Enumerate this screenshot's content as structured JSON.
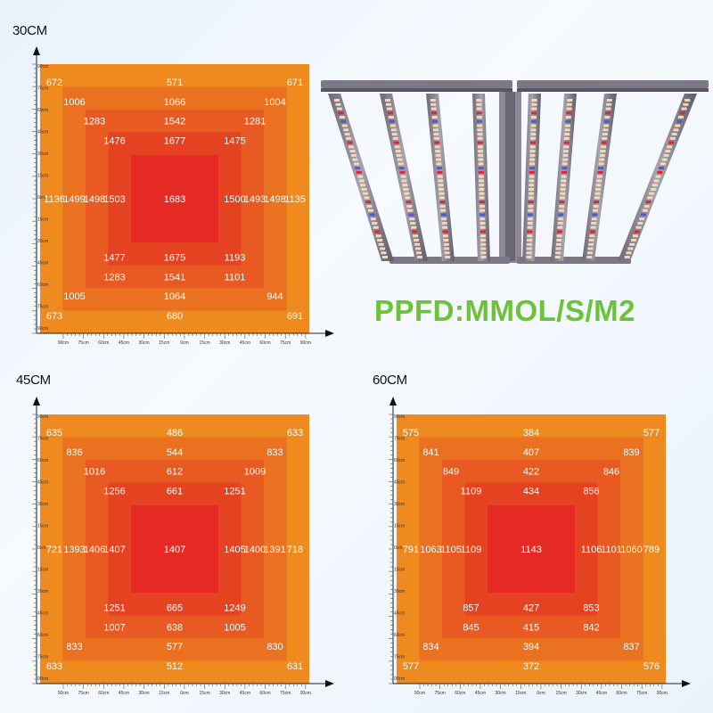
{
  "colors": {
    "ring0": "#ef8a1e",
    "ring1": "#ea7120",
    "ring2": "#e85a21",
    "ring3": "#e54222",
    "ring4": "#e42a22",
    "headline": "#6cc33a"
  },
  "headline": "PPFD:MMOL/S/M2",
  "fixture": {
    "icon": "led-grow-light-bars-icon"
  },
  "axis_ticks": [
    "90cm",
    "75cm",
    "60cm",
    "45cm",
    "30cm",
    "15cm",
    "0cm",
    "15cm",
    "30cm",
    "45cm",
    "60cm",
    "75cm",
    "90cm"
  ],
  "chart_data": [
    {
      "type": "heatmap",
      "title": "30CM",
      "values": [
        {
          "label": "672",
          "row": 0,
          "col": 0,
          "ring": 0
        },
        {
          "label": "571",
          "row": 0,
          "col": 6,
          "ring": 0
        },
        {
          "label": "671",
          "row": 0,
          "col": 12,
          "ring": 0
        },
        {
          "label": "1006",
          "row": 1,
          "col": 1,
          "ring": 1
        },
        {
          "label": "1066",
          "row": 1,
          "col": 6,
          "ring": 1
        },
        {
          "label": "1004",
          "row": 1,
          "col": 11,
          "ring": 1
        },
        {
          "label": "1283",
          "row": 2,
          "col": 2,
          "ring": 2
        },
        {
          "label": "1542",
          "row": 2,
          "col": 6,
          "ring": 2
        },
        {
          "label": "1281",
          "row": 2,
          "col": 10,
          "ring": 2
        },
        {
          "label": "1476",
          "row": 3,
          "col": 3,
          "ring": 3
        },
        {
          "label": "1677",
          "row": 3,
          "col": 6,
          "ring": 3
        },
        {
          "label": "1475",
          "row": 3,
          "col": 9,
          "ring": 3
        },
        {
          "label": "1136",
          "row": 6,
          "col": 0,
          "ring": 0
        },
        {
          "label": "1499",
          "row": 6,
          "col": 1,
          "ring": 1
        },
        {
          "label": "1498",
          "row": 6,
          "col": 2,
          "ring": 2
        },
        {
          "label": "1503",
          "row": 6,
          "col": 3,
          "ring": 3
        },
        {
          "label": "1683",
          "row": 6,
          "col": 6,
          "ring": 4
        },
        {
          "label": "1500",
          "row": 6,
          "col": 9,
          "ring": 3
        },
        {
          "label": "1493",
          "row": 6,
          "col": 10,
          "ring": 2
        },
        {
          "label": "1498",
          "row": 6,
          "col": 11,
          "ring": 1
        },
        {
          "label": "1135",
          "row": 6,
          "col": 12,
          "ring": 0
        },
        {
          "label": "1477",
          "row": 9,
          "col": 3,
          "ring": 3
        },
        {
          "label": "1675",
          "row": 9,
          "col": 6,
          "ring": 3
        },
        {
          "label": "1193",
          "row": 9,
          "col": 9,
          "ring": 3
        },
        {
          "label": "1283",
          "row": 10,
          "col": 3,
          "ring": 2
        },
        {
          "label": "1541",
          "row": 10,
          "col": 6,
          "ring": 2
        },
        {
          "label": "1101",
          "row": 10,
          "col": 9,
          "ring": 2
        },
        {
          "label": "1005",
          "row": 11,
          "col": 1,
          "ring": 1
        },
        {
          "label": "1064",
          "row": 11,
          "col": 6,
          "ring": 1
        },
        {
          "label": "944",
          "row": 11,
          "col": 11,
          "ring": 1
        },
        {
          "label": "673",
          "row": 12,
          "col": 0,
          "ring": 0
        },
        {
          "label": "680",
          "row": 12,
          "col": 6,
          "ring": 0
        },
        {
          "label": "691",
          "row": 12,
          "col": 12,
          "ring": 0
        }
      ]
    },
    {
      "type": "heatmap",
      "title": "45CM",
      "values": [
        {
          "label": "635",
          "row": 0,
          "col": 0,
          "ring": 0
        },
        {
          "label": "486",
          "row": 0,
          "col": 6,
          "ring": 0
        },
        {
          "label": "633",
          "row": 0,
          "col": 12,
          "ring": 0
        },
        {
          "label": "836",
          "row": 1,
          "col": 1,
          "ring": 1
        },
        {
          "label": "544",
          "row": 1,
          "col": 6,
          "ring": 1
        },
        {
          "label": "833",
          "row": 1,
          "col": 11,
          "ring": 1
        },
        {
          "label": "1016",
          "row": 2,
          "col": 2,
          "ring": 2
        },
        {
          "label": "612",
          "row": 2,
          "col": 6,
          "ring": 2
        },
        {
          "label": "1009",
          "row": 2,
          "col": 10,
          "ring": 2
        },
        {
          "label": "1256",
          "row": 3,
          "col": 3,
          "ring": 3
        },
        {
          "label": "661",
          "row": 3,
          "col": 6,
          "ring": 3
        },
        {
          "label": "1251",
          "row": 3,
          "col": 9,
          "ring": 3
        },
        {
          "label": "721",
          "row": 6,
          "col": 0,
          "ring": 0
        },
        {
          "label": "1393",
          "row": 6,
          "col": 1,
          "ring": 1
        },
        {
          "label": "1406",
          "row": 6,
          "col": 2,
          "ring": 2
        },
        {
          "label": "1407",
          "row": 6,
          "col": 3,
          "ring": 3
        },
        {
          "label": "1407",
          "row": 6,
          "col": 6,
          "ring": 4
        },
        {
          "label": "1405",
          "row": 6,
          "col": 9,
          "ring": 3
        },
        {
          "label": "1400",
          "row": 6,
          "col": 10,
          "ring": 2
        },
        {
          "label": "1391",
          "row": 6,
          "col": 11,
          "ring": 1
        },
        {
          "label": "718",
          "row": 6,
          "col": 12,
          "ring": 0
        },
        {
          "label": "1251",
          "row": 9,
          "col": 3,
          "ring": 3
        },
        {
          "label": "665",
          "row": 9,
          "col": 6,
          "ring": 3
        },
        {
          "label": "1249",
          "row": 9,
          "col": 9,
          "ring": 3
        },
        {
          "label": "1007",
          "row": 10,
          "col": 3,
          "ring": 2
        },
        {
          "label": "638",
          "row": 10,
          "col": 6,
          "ring": 2
        },
        {
          "label": "1005",
          "row": 10,
          "col": 9,
          "ring": 2
        },
        {
          "label": "833",
          "row": 11,
          "col": 1,
          "ring": 1
        },
        {
          "label": "577",
          "row": 11,
          "col": 6,
          "ring": 1
        },
        {
          "label": "830",
          "row": 11,
          "col": 11,
          "ring": 1
        },
        {
          "label": "633",
          "row": 12,
          "col": 0,
          "ring": 0
        },
        {
          "label": "512",
          "row": 12,
          "col": 6,
          "ring": 0
        },
        {
          "label": "631",
          "row": 12,
          "col": 12,
          "ring": 0
        }
      ]
    },
    {
      "type": "heatmap",
      "title": "60CM",
      "values": [
        {
          "label": "575",
          "row": 0,
          "col": 0,
          "ring": 0
        },
        {
          "label": "384",
          "row": 0,
          "col": 6,
          "ring": 0
        },
        {
          "label": "577",
          "row": 0,
          "col": 12,
          "ring": 0
        },
        {
          "label": "841",
          "row": 1,
          "col": 1,
          "ring": 1
        },
        {
          "label": "407",
          "row": 1,
          "col": 6,
          "ring": 1
        },
        {
          "label": "839",
          "row": 1,
          "col": 11,
          "ring": 1
        },
        {
          "label": "849",
          "row": 2,
          "col": 2,
          "ring": 2
        },
        {
          "label": "422",
          "row": 2,
          "col": 6,
          "ring": 2
        },
        {
          "label": "846",
          "row": 2,
          "col": 10,
          "ring": 2
        },
        {
          "label": "1109",
          "row": 3,
          "col": 3,
          "ring": 3
        },
        {
          "label": "434",
          "row": 3,
          "col": 6,
          "ring": 3
        },
        {
          "label": "856",
          "row": 3,
          "col": 9,
          "ring": 3
        },
        {
          "label": "791",
          "row": 6,
          "col": 0,
          "ring": 0
        },
        {
          "label": "1063",
          "row": 6,
          "col": 1,
          "ring": 1
        },
        {
          "label": "1105",
          "row": 6,
          "col": 2,
          "ring": 2
        },
        {
          "label": "1109",
          "row": 6,
          "col": 3,
          "ring": 3
        },
        {
          "label": "1143",
          "row": 6,
          "col": 6,
          "ring": 4
        },
        {
          "label": "1106",
          "row": 6,
          "col": 9,
          "ring": 3
        },
        {
          "label": "1101",
          "row": 6,
          "col": 10,
          "ring": 2
        },
        {
          "label": "1060",
          "row": 6,
          "col": 11,
          "ring": 1
        },
        {
          "label": "789",
          "row": 6,
          "col": 12,
          "ring": 0
        },
        {
          "label": "857",
          "row": 9,
          "col": 3,
          "ring": 3
        },
        {
          "label": "427",
          "row": 9,
          "col": 6,
          "ring": 3
        },
        {
          "label": "853",
          "row": 9,
          "col": 9,
          "ring": 3
        },
        {
          "label": "845",
          "row": 10,
          "col": 3,
          "ring": 2
        },
        {
          "label": "415",
          "row": 10,
          "col": 6,
          "ring": 2
        },
        {
          "label": "842",
          "row": 10,
          "col": 9,
          "ring": 2
        },
        {
          "label": "834",
          "row": 11,
          "col": 1,
          "ring": 1
        },
        {
          "label": "394",
          "row": 11,
          "col": 6,
          "ring": 1
        },
        {
          "label": "837",
          "row": 11,
          "col": 11,
          "ring": 1
        },
        {
          "label": "577",
          "row": 12,
          "col": 0,
          "ring": 0
        },
        {
          "label": "372",
          "row": 12,
          "col": 6,
          "ring": 0
        },
        {
          "label": "576",
          "row": 12,
          "col": 12,
          "ring": 0
        }
      ]
    }
  ]
}
